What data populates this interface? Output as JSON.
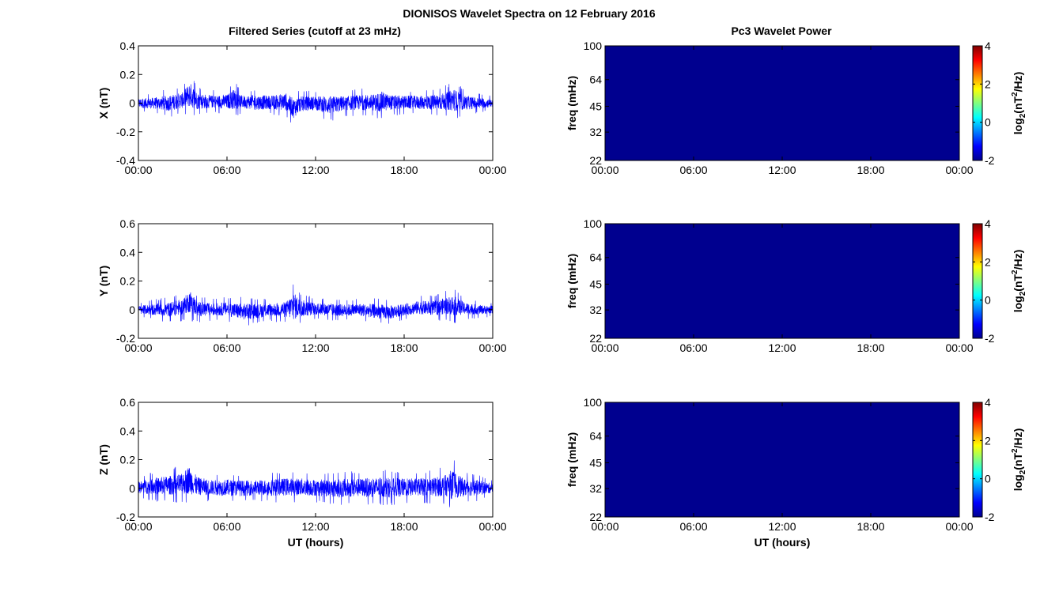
{
  "figure": {
    "title": "DIONISOS Wavelet Spectra on 12 February 2016",
    "left_column_title": "Filtered Series (cutoff at 23 mHz)",
    "right_column_title": "Pc3 Wavelet Power"
  },
  "colors": {
    "series": "#0000ff",
    "spectrum_background": "#00008f",
    "axis": "#000000"
  },
  "chart_data": [
    {
      "type": "line",
      "component": "X",
      "ylabel": "X (nT)",
      "xlabel": "",
      "x_ticks": [
        "00:00",
        "06:00",
        "12:00",
        "18:00",
        "00:00"
      ],
      "xlim_hours": [
        0,
        24
      ],
      "ylim": [
        -0.4,
        0.4
      ],
      "y_ticks": [
        -0.4,
        -0.2,
        0,
        0.2,
        0.4
      ],
      "y_tick_labels": [
        "-0.4",
        "-0.2",
        "0",
        "0.2",
        "0.4"
      ],
      "envelope": {
        "hours": [
          0,
          1,
          2,
          3,
          3.5,
          4,
          5,
          6,
          6.5,
          7,
          8,
          9,
          10,
          10.5,
          11,
          12,
          13,
          14,
          15,
          16,
          16.5,
          17,
          18,
          19,
          20,
          21,
          21.3,
          22,
          23,
          24
        ],
        "max": [
          0.06,
          0.07,
          0.1,
          0.12,
          0.22,
          0.12,
          0.09,
          0.1,
          0.16,
          0.09,
          0.1,
          0.09,
          0.12,
          0.09,
          0.09,
          0.09,
          0.1,
          0.09,
          0.1,
          0.11,
          0.14,
          0.1,
          0.09,
          0.09,
          0.1,
          0.13,
          0.17,
          0.1,
          0.07,
          0.05
        ],
        "min": [
          -0.06,
          -0.07,
          -0.1,
          -0.08,
          -0.1,
          -0.09,
          -0.07,
          -0.08,
          -0.1,
          -0.07,
          -0.09,
          -0.08,
          -0.1,
          -0.16,
          -0.1,
          -0.09,
          -0.13,
          -0.09,
          -0.09,
          -0.1,
          -0.12,
          -0.09,
          -0.08,
          -0.08,
          -0.09,
          -0.1,
          -0.12,
          -0.09,
          -0.07,
          -0.05
        ]
      }
    },
    {
      "type": "line",
      "component": "Y",
      "ylabel": "Y (nT)",
      "xlabel": "",
      "x_ticks": [
        "00:00",
        "06:00",
        "12:00",
        "18:00",
        "00:00"
      ],
      "xlim_hours": [
        0,
        24
      ],
      "ylim": [
        -0.2,
        0.6
      ],
      "y_ticks": [
        -0.2,
        0,
        0.2,
        0.4,
        0.6
      ],
      "y_tick_labels": [
        "-0.2",
        "0",
        "0.2",
        "0.4",
        "0.6"
      ],
      "envelope": {
        "hours": [
          0,
          1,
          2,
          3,
          3.5,
          4,
          5,
          6,
          7,
          8,
          9,
          10,
          10.5,
          11,
          12,
          13,
          14,
          15,
          16,
          17,
          18,
          19,
          20,
          21,
          21.3,
          22,
          23,
          24
        ],
        "max": [
          0.05,
          0.07,
          0.09,
          0.12,
          0.2,
          0.1,
          0.08,
          0.09,
          0.09,
          0.08,
          0.08,
          0.1,
          0.2,
          0.12,
          0.08,
          0.08,
          0.07,
          0.08,
          0.08,
          0.07,
          0.07,
          0.1,
          0.1,
          0.14,
          0.16,
          0.09,
          0.06,
          0.05
        ],
        "min": [
          -0.05,
          -0.07,
          -0.09,
          -0.08,
          -0.08,
          -0.09,
          -0.08,
          -0.08,
          -0.12,
          -0.1,
          -0.08,
          -0.1,
          -0.15,
          -0.1,
          -0.07,
          -0.08,
          -0.08,
          -0.08,
          -0.1,
          -0.11,
          -0.07,
          -0.07,
          -0.08,
          -0.08,
          -0.1,
          -0.07,
          -0.06,
          -0.05
        ]
      }
    },
    {
      "type": "line",
      "component": "Z",
      "ylabel": "Z (nT)",
      "xlabel": "UT (hours)",
      "x_ticks": [
        "00:00",
        "06:00",
        "12:00",
        "18:00",
        "00:00"
      ],
      "xlim_hours": [
        0,
        24
      ],
      "ylim": [
        -0.2,
        0.6
      ],
      "y_ticks": [
        -0.2,
        0,
        0.2,
        0.4,
        0.6
      ],
      "y_tick_labels": [
        "-0.2",
        "0",
        "0.2",
        "0.4",
        "0.6"
      ],
      "envelope": {
        "hours": [
          0,
          1,
          2,
          3,
          3.4,
          4,
          5,
          6,
          7,
          8,
          9,
          10,
          11,
          12,
          13,
          14,
          15,
          16,
          17,
          18,
          19,
          20,
          21,
          21.2,
          22,
          23,
          24
        ],
        "max": [
          0.08,
          0.12,
          0.14,
          0.16,
          0.24,
          0.13,
          0.1,
          0.11,
          0.1,
          0.1,
          0.11,
          0.12,
          0.12,
          0.11,
          0.11,
          0.12,
          0.12,
          0.13,
          0.13,
          0.12,
          0.12,
          0.13,
          0.16,
          0.22,
          0.12,
          0.1,
          0.06
        ],
        "min": [
          -0.07,
          -0.09,
          -0.1,
          -0.1,
          -0.12,
          -0.1,
          -0.09,
          -0.1,
          -0.1,
          -0.09,
          -0.1,
          -0.1,
          -0.1,
          -0.1,
          -0.11,
          -0.12,
          -0.11,
          -0.12,
          -0.12,
          -0.11,
          -0.1,
          -0.11,
          -0.12,
          -0.16,
          -0.11,
          -0.09,
          -0.06
        ]
      }
    },
    {
      "type": "heatmap",
      "component": "X",
      "ylabel": "freq (mHz)",
      "xlabel": "",
      "x_ticks": [
        "00:00",
        "06:00",
        "12:00",
        "18:00",
        "00:00"
      ],
      "y_ticks": [
        "100",
        "64",
        "45",
        "32",
        "22"
      ],
      "ylim_mHz": [
        22,
        100
      ],
      "y_scale": "log",
      "colorbar": {
        "label_base": "log",
        "label_sub": "2",
        "label_rest_a": "(nT",
        "label_sup": "2",
        "label_rest_b": "/Hz)",
        "range": [
          -2,
          4
        ],
        "ticks": [
          "4",
          "2",
          "0",
          "-2"
        ]
      },
      "value": -2
    },
    {
      "type": "heatmap",
      "component": "Y",
      "ylabel": "freq (mHz)",
      "xlabel": "",
      "x_ticks": [
        "00:00",
        "06:00",
        "12:00",
        "18:00",
        "00:00"
      ],
      "y_ticks": [
        "100",
        "64",
        "45",
        "32",
        "22"
      ],
      "ylim_mHz": [
        22,
        100
      ],
      "y_scale": "log",
      "colorbar": {
        "label_base": "log",
        "label_sub": "2",
        "label_rest_a": "(nT",
        "label_sup": "2",
        "label_rest_b": "/Hz)",
        "range": [
          -2,
          4
        ],
        "ticks": [
          "4",
          "2",
          "0",
          "-2"
        ]
      },
      "value": -2
    },
    {
      "type": "heatmap",
      "component": "Z",
      "ylabel": "freq (mHz)",
      "xlabel": "UT (hours)",
      "x_ticks": [
        "00:00",
        "06:00",
        "12:00",
        "18:00",
        "00:00"
      ],
      "y_ticks": [
        "100",
        "64",
        "45",
        "32",
        "22"
      ],
      "ylim_mHz": [
        22,
        100
      ],
      "y_scale": "log",
      "colorbar": {
        "label_base": "log",
        "label_sub": "2",
        "label_rest_a": "(nT",
        "label_sup": "2",
        "label_rest_b": "/Hz)",
        "range": [
          -2,
          4
        ],
        "ticks": [
          "4",
          "2",
          "0",
          "-2"
        ]
      },
      "value": -2
    }
  ]
}
